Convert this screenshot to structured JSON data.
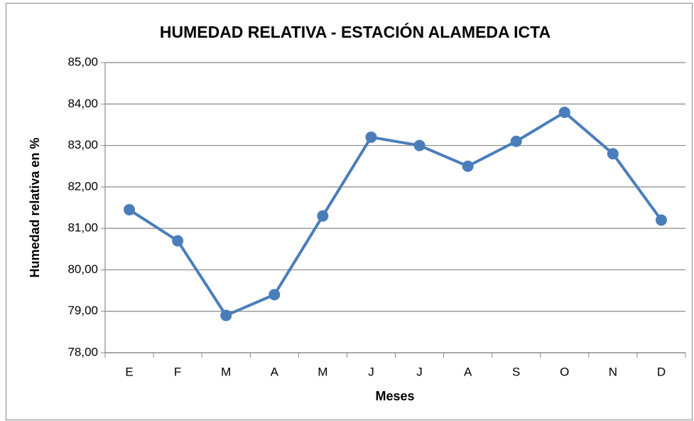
{
  "chart_data": {
    "type": "line",
    "title": "HUMEDAD RELATIVA - ESTACIÓN ALAMEDA ICTA",
    "x_label": "Meses",
    "y_label": "Humedad relativa en %",
    "categories": [
      "E",
      "F",
      "M",
      "A",
      "M",
      "J",
      "J",
      "A",
      "S",
      "O",
      "N",
      "D"
    ],
    "series": [
      {
        "name": "Humedad relativa",
        "color": "#4a7ebb",
        "values": [
          81.45,
          80.7,
          78.9,
          79.4,
          81.3,
          83.2,
          83.0,
          82.5,
          83.1,
          83.8,
          82.8,
          81.2
        ]
      }
    ],
    "ylim": [
      78,
      85
    ],
    "yticks": [
      {
        "value": 78,
        "label": "78,00"
      },
      {
        "value": 79,
        "label": "79,00"
      },
      {
        "value": 80,
        "label": "80,00"
      },
      {
        "value": 81,
        "label": "81,00"
      },
      {
        "value": 82,
        "label": "82,00"
      },
      {
        "value": 83,
        "label": "83,00"
      },
      {
        "value": 84,
        "label": "84,00"
      },
      {
        "value": 85,
        "label": "85,00"
      }
    ],
    "grid": true
  }
}
